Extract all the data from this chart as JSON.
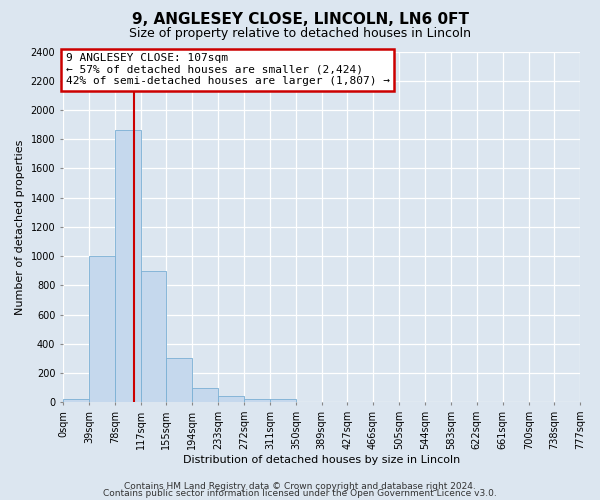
{
  "title": "9, ANGLESEY CLOSE, LINCOLN, LN6 0FT",
  "subtitle": "Size of property relative to detached houses in Lincoln",
  "xlabel": "Distribution of detached houses by size in Lincoln",
  "ylabel": "Number of detached properties",
  "bar_color": "#c5d8ed",
  "bar_edge_color": "#7aafd4",
  "background_color": "#dce6f0",
  "fig_background_color": "#dce6f0",
  "grid_color": "#ffffff",
  "redline_color": "#cc0000",
  "redline_x": 107,
  "bin_edges": [
    0,
    39,
    78,
    117,
    155,
    194,
    233,
    272,
    311,
    350,
    389,
    427,
    466,
    505,
    544,
    583,
    622,
    661,
    700,
    738,
    777
  ],
  "bar_heights": [
    20,
    1000,
    1860,
    900,
    300,
    100,
    40,
    25,
    20,
    0,
    0,
    0,
    0,
    0,
    0,
    0,
    0,
    0,
    0,
    0
  ],
  "annotation_line1": "9 ANGLESEY CLOSE: 107sqm",
  "annotation_line2": "← 57% of detached houses are smaller (2,424)",
  "annotation_line3": "42% of semi-detached houses are larger (1,807) →",
  "ylim": [
    0,
    2400
  ],
  "yticks": [
    0,
    200,
    400,
    600,
    800,
    1000,
    1200,
    1400,
    1600,
    1800,
    2000,
    2200,
    2400
  ],
  "footer_line1": "Contains HM Land Registry data © Crown copyright and database right 2024.",
  "footer_line2": "Contains public sector information licensed under the Open Government Licence v3.0.",
  "title_fontsize": 11,
  "subtitle_fontsize": 9,
  "axis_label_fontsize": 8,
  "tick_fontsize": 7,
  "annotation_fontsize": 8,
  "footer_fontsize": 6.5
}
